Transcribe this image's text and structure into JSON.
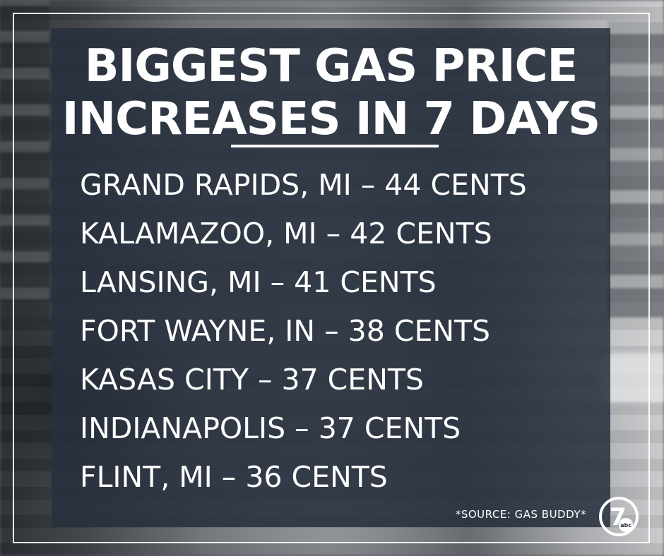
{
  "title": {
    "line1": "BIGGEST GAS PRICE",
    "line2": "INCREASES IN 7 DAYS"
  },
  "increases": [
    {
      "text": "GRAND RAPIDS, MI – 44 CENTS"
    },
    {
      "text": "KALAMAZOO, MI – 42 CENTS"
    },
    {
      "text": "LANSING, MI – 41 CENTS"
    },
    {
      "text": "FORT WAYNE, IN – 38 CENTS"
    },
    {
      "text": "KASAS CITY – 37 CENTS"
    },
    {
      "text": "INDIANAPOLIS – 37 CENTS"
    },
    {
      "text": "FLINT, MI – 36 CENTS"
    }
  ],
  "source": "*SOURCE: GAS BUDDY*",
  "logo": {
    "icon": "wxyz-7-abc-logo-icon",
    "number": "7",
    "network": "abc"
  },
  "colors": {
    "panel": "#28303e",
    "text": "#ffffff"
  }
}
